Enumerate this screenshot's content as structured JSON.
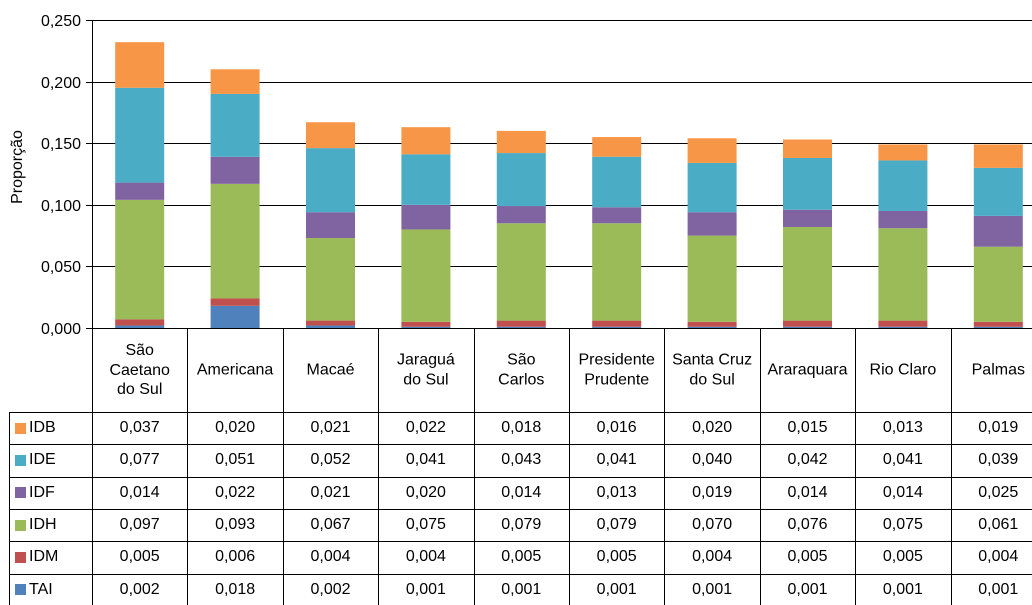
{
  "chart_data": {
    "type": "bar",
    "stacked": true,
    "data_table": true,
    "ylabel": "Proporção",
    "ylim": [
      0,
      0.25
    ],
    "yticks": [
      0,
      0.05,
      0.1,
      0.15,
      0.2,
      0.25
    ],
    "ytick_labels": [
      "0,000",
      "0,050",
      "0,100",
      "0,150",
      "0,200",
      "0,250"
    ],
    "grid": true,
    "legend": "bottom",
    "categories": [
      "São Caetano do Sul",
      "Americana",
      "Macaé",
      "Jaraguá do Sul",
      "São Carlos",
      "Presidente Prudente",
      "Santa Cruz do Sul",
      "Araraquara",
      "Rio Claro",
      "Palmas"
    ],
    "series": [
      {
        "name": "IDB",
        "color": "#F79646",
        "values": [
          0.037,
          0.02,
          0.021,
          0.022,
          0.018,
          0.016,
          0.02,
          0.015,
          0.013,
          0.019
        ],
        "value_labels": [
          "0,037",
          "0,020",
          "0,021",
          "0,022",
          "0,018",
          "0,016",
          "0,020",
          "0,015",
          "0,013",
          "0,019"
        ]
      },
      {
        "name": "IDE",
        "color": "#4BACC6",
        "values": [
          0.077,
          0.051,
          0.052,
          0.041,
          0.043,
          0.041,
          0.04,
          0.042,
          0.041,
          0.039
        ],
        "value_labels": [
          "0,077",
          "0,051",
          "0,052",
          "0,041",
          "0,043",
          "0,041",
          "0,040",
          "0,042",
          "0,041",
          "0,039"
        ]
      },
      {
        "name": "IDF",
        "color": "#8064A2",
        "values": [
          0.014,
          0.022,
          0.021,
          0.02,
          0.014,
          0.013,
          0.019,
          0.014,
          0.014,
          0.025
        ],
        "value_labels": [
          "0,014",
          "0,022",
          "0,021",
          "0,020",
          "0,014",
          "0,013",
          "0,019",
          "0,014",
          "0,014",
          "0,025"
        ]
      },
      {
        "name": "IDH",
        "color": "#9BBB59",
        "values": [
          0.097,
          0.093,
          0.067,
          0.075,
          0.079,
          0.079,
          0.07,
          0.076,
          0.075,
          0.061
        ],
        "value_labels": [
          "0,097",
          "0,093",
          "0,067",
          "0,075",
          "0,079",
          "0,079",
          "0,070",
          "0,076",
          "0,075",
          "0,061"
        ]
      },
      {
        "name": "IDM",
        "color": "#C0504D",
        "values": [
          0.005,
          0.006,
          0.004,
          0.004,
          0.005,
          0.005,
          0.004,
          0.005,
          0.005,
          0.004
        ],
        "value_labels": [
          "0,005",
          "0,006",
          "0,004",
          "0,004",
          "0,005",
          "0,005",
          "0,004",
          "0,005",
          "0,005",
          "0,004"
        ]
      },
      {
        "name": "TAI",
        "color": "#4F81BD",
        "values": [
          0.002,
          0.018,
          0.002,
          0.001,
          0.001,
          0.001,
          0.001,
          0.001,
          0.001,
          0.001
        ],
        "value_labels": [
          "0,002",
          "0,018",
          "0,002",
          "0,001",
          "0,001",
          "0,001",
          "0,001",
          "0,001",
          "0,001",
          "0,001"
        ]
      }
    ]
  }
}
